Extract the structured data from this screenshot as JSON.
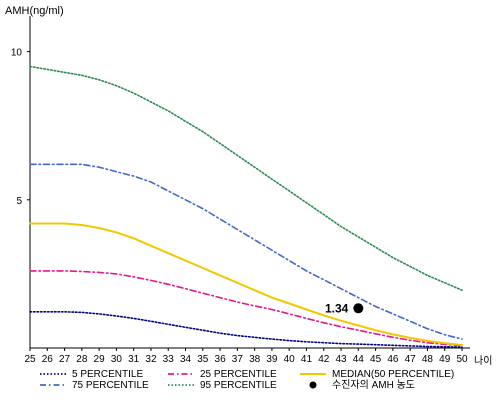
{
  "chart_data": {
    "type": "line",
    "title": "",
    "ylabel": "AMH(ng/ml)",
    "xlabel": "나이",
    "xlim": [
      25,
      50
    ],
    "ylim": [
      0,
      11
    ],
    "y_ticks": [
      5,
      10
    ],
    "x_ticks": [
      25,
      26,
      27,
      28,
      29,
      30,
      31,
      32,
      33,
      34,
      35,
      36,
      37,
      38,
      39,
      40,
      41,
      42,
      43,
      44,
      45,
      46,
      47,
      48,
      49,
      50
    ],
    "grid": false,
    "legend_position": "bottom",
    "x": [
      25,
      26,
      27,
      28,
      29,
      30,
      31,
      32,
      33,
      34,
      35,
      36,
      37,
      38,
      39,
      40,
      41,
      42,
      43,
      44,
      45,
      46,
      47,
      48,
      49,
      50
    ],
    "series": [
      {
        "name": "5 PERCENTILE",
        "color": "#000080",
        "dash": "dotted",
        "values": [
          1.22,
          1.22,
          1.22,
          1.2,
          1.15,
          1.08,
          1.0,
          0.9,
          0.8,
          0.7,
          0.6,
          0.5,
          0.42,
          0.36,
          0.3,
          0.25,
          0.21,
          0.18,
          0.15,
          0.13,
          0.11,
          0.09,
          0.07,
          0.05,
          0.04,
          0.03
        ]
      },
      {
        "name": "75 PERCENTILE",
        "color": "#4169c8",
        "dash": "dash-dot",
        "values": [
          6.2,
          6.2,
          6.2,
          6.2,
          6.1,
          5.95,
          5.8,
          5.6,
          5.3,
          5.0,
          4.7,
          4.35,
          4.0,
          3.65,
          3.3,
          2.95,
          2.6,
          2.3,
          2.0,
          1.7,
          1.4,
          1.15,
          0.9,
          0.65,
          0.45,
          0.3
        ]
      },
      {
        "name": "25 PERCENTILE",
        "color": "#e0198c",
        "dash": "dash-dot",
        "values": [
          2.6,
          2.6,
          2.6,
          2.58,
          2.55,
          2.5,
          2.4,
          2.28,
          2.15,
          2.0,
          1.85,
          1.7,
          1.55,
          1.42,
          1.3,
          1.15,
          1.0,
          0.85,
          0.72,
          0.6,
          0.48,
          0.36,
          0.26,
          0.18,
          0.12,
          0.08
        ]
      },
      {
        "name": "95 PERCENTILE",
        "color": "#2e8b57",
        "dash": "dotted",
        "values": [
          9.5,
          9.4,
          9.3,
          9.2,
          9.05,
          8.85,
          8.6,
          8.3,
          8.0,
          7.65,
          7.3,
          6.9,
          6.5,
          6.1,
          5.7,
          5.3,
          4.9,
          4.5,
          4.1,
          3.75,
          3.4,
          3.05,
          2.75,
          2.45,
          2.2,
          1.95
        ]
      },
      {
        "name": "MEDIAN(50 PERCENTILE)",
        "color": "#f0c800",
        "dash": "solid",
        "values": [
          4.2,
          4.2,
          4.2,
          4.15,
          4.05,
          3.9,
          3.7,
          3.45,
          3.2,
          2.95,
          2.7,
          2.45,
          2.2,
          1.95,
          1.7,
          1.5,
          1.3,
          1.1,
          0.92,
          0.76,
          0.6,
          0.46,
          0.34,
          0.24,
          0.16,
          0.1
        ]
      }
    ],
    "point": {
      "name": "수진자의 AMH 농도",
      "x": 44,
      "y": 1.34,
      "label": "1.34",
      "color": "#000000"
    }
  }
}
